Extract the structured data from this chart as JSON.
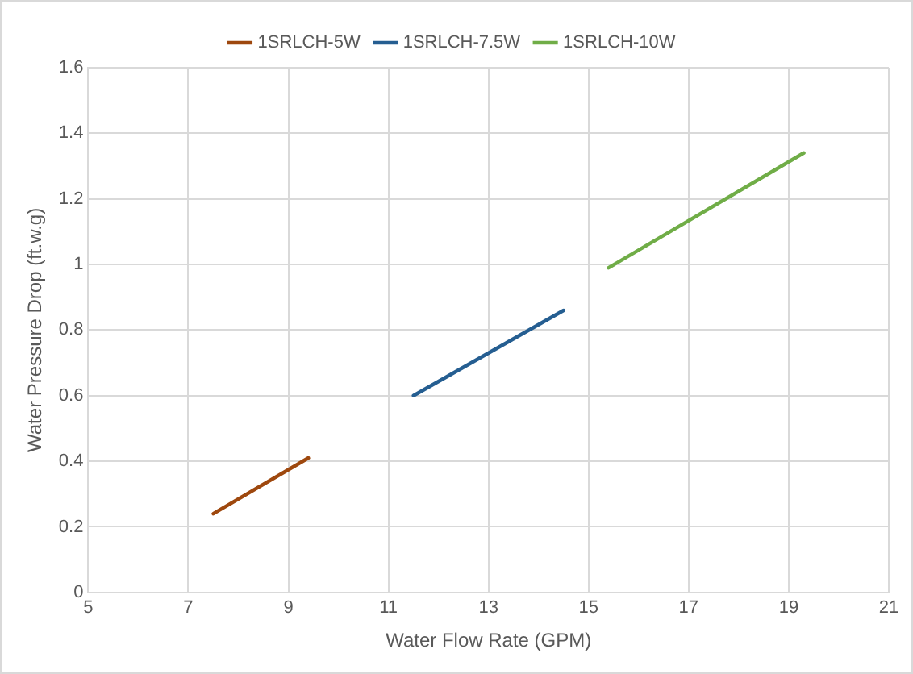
{
  "chart_data": {
    "type": "line",
    "xlabel": "Water Flow Rate (GPM)",
    "ylabel": "Water Pressure Drop (ft.w.g)",
    "series": [
      {
        "name": "1SRLCH-5W",
        "color": "#9e480e",
        "x": [
          7.5,
          9.4
        ],
        "values": [
          0.24,
          0.41
        ]
      },
      {
        "name": "1SRLCH-7.5W",
        "color": "#255e91",
        "x": [
          11.5,
          14.5
        ],
        "values": [
          0.6,
          0.86
        ]
      },
      {
        "name": "1SRLCH-10W",
        "color": "#70ad47",
        "x": [
          15.4,
          19.3
        ],
        "values": [
          0.99,
          1.34
        ]
      }
    ],
    "xlim": [
      5,
      21
    ],
    "xticks": [
      5,
      7,
      9,
      11,
      13,
      15,
      17,
      19,
      21
    ],
    "ylim": [
      0,
      1.6
    ],
    "yticks": [
      0,
      0.2,
      0.4,
      0.6,
      0.8,
      1,
      1.2,
      1.4,
      1.6
    ],
    "grid": true,
    "legend": "top",
    "marker": "none",
    "line_style": "solid"
  }
}
